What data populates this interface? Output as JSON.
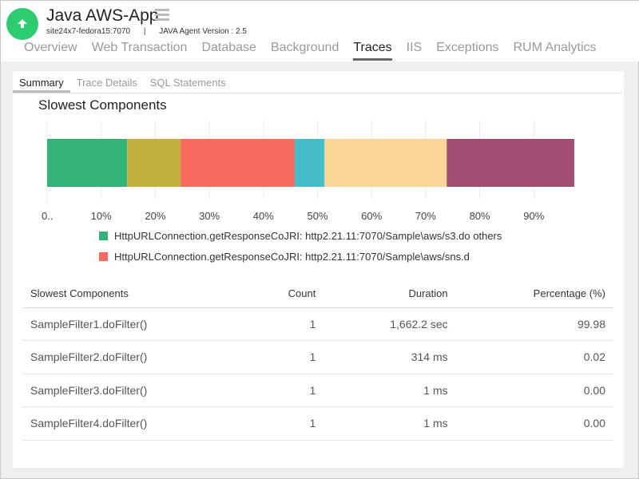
{
  "app": {
    "title": "Java AWS-App",
    "host": "site24x7-fedora15:7070",
    "separator": "|",
    "agent": "JAVA Agent Version : 2.5"
  },
  "tabs": [
    "Overview",
    "Web Transaction",
    "Database",
    "Background",
    "Traces",
    "IIS",
    "Exceptions",
    "RUM Analytics"
  ],
  "active_tab": "Traces",
  "subtabs": [
    "Summary",
    "Trace Details",
    "SQL Statements"
  ],
  "active_subtab": "Summary",
  "chart_data": {
    "type": "bar",
    "stacked": true,
    "orientation": "horizontal",
    "title": "Slowest Components",
    "xlim": [
      0,
      100
    ],
    "ticks": [
      "0..",
      "10%",
      "20%",
      "30%",
      "40%",
      "50%",
      "60%",
      "70%",
      "80%",
      "90%"
    ],
    "grid": true,
    "segments": [
      {
        "value": 14.8,
        "color": "#33b27a"
      },
      {
        "value": 9.9,
        "color": "#c4b03e"
      },
      {
        "value": 21.1,
        "color": "#f86a5e"
      },
      {
        "value": 5.5,
        "color": "#47bdcb"
      },
      {
        "value": 22.6,
        "color": "#f9d597"
      },
      {
        "value": 23.6,
        "color": "#a24d74"
      }
    ],
    "legend": [
      {
        "label": "HttpURLConnection.getResponseCoJRI: http2.21.11:7070/Sample\\aws/s3.do others",
        "color": "#33b27a"
      },
      {
        "label": "HttpURLConnection.getResponseCoJRI: http2.21.11:7070/Sample\\aws/sns.d",
        "color": "#f86a5e"
      }
    ]
  },
  "table": {
    "headers": [
      "Slowest Components",
      "Count",
      "Duration",
      "Percentage (%)"
    ],
    "rows": [
      [
        "SampleFilter1.doFilter()",
        "1",
        "1,662.2 sec",
        "99.98"
      ],
      [
        "SampleFilter2.doFilter()",
        "1",
        "314 ms",
        "0.02"
      ],
      [
        "SampleFilter3.doFilter()",
        "1",
        "1 ms",
        "0.00"
      ],
      [
        "SampleFilter4.doFilter()",
        "1",
        "1 ms",
        "0.00"
      ]
    ]
  }
}
